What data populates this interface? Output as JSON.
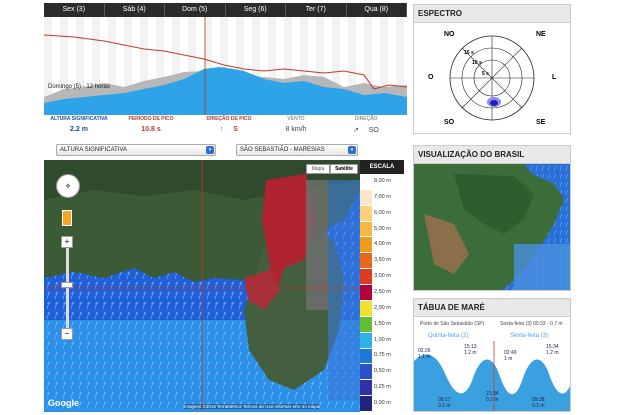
{
  "days": [
    "Sex (3)",
    "Sáb (4)",
    "Dom (5)",
    "Seg (6)",
    "Ter (7)",
    "Qua (8)"
  ],
  "chart_caption": "Domingo (5) - 12 horas",
  "metrics": {
    "altura": {
      "label": "ALTURA SIGNIFICATIVA",
      "value": "2.2 m"
    },
    "periodo": {
      "label": "PERÍODO DE PICO",
      "value": "10.8 s"
    },
    "direcao": {
      "label": "DIREÇÃO DE PICO",
      "arrow": "↑",
      "value": "S"
    },
    "vento": {
      "label": "VENTO",
      "value": "8 km/h"
    },
    "vento_dir": {
      "label": "DIREÇÃO",
      "arrow": "↗",
      "value": "SO"
    }
  },
  "spectrum": {
    "title": "ESPECTRO",
    "dirs": {
      "n": "NO",
      "ne": "NE",
      "w": "O",
      "e": "L",
      "sw": "SO",
      "se": "SE"
    },
    "rings": [
      "15 s",
      "10 s",
      "5 s"
    ]
  },
  "selects": {
    "variable": "ALTURA SIGNIFICATIVA",
    "location": "SÃO SEBASTIÃO - MARESIAS"
  },
  "map": {
    "tab_map": "Mapa",
    "tab_sat": "Satélite",
    "logo": "Google",
    "attribution": "Imagens ©2015 TerraMetrics   Termos de Uso   Informar erro no mapa"
  },
  "scale": {
    "title": "ESCALA",
    "labels": [
      "8,00 m",
      "7,00 m",
      "6,00 m",
      "5,00 m",
      "4,00 m",
      "3,50 m",
      "3,00 m",
      "2,50 m",
      "2,00 m",
      "1,50 m",
      "1,00 m",
      "0,75 m",
      "0,50 m",
      "0,25 m",
      "0,00 m"
    ]
  },
  "brasil": {
    "title": "VISUALIZAÇÃO DO BRASIL"
  },
  "tide": {
    "title": "TÁBUA DE MARÉ",
    "port": "Porto de São Sebastião (SP)",
    "now": "Sexta-feira (3) 00:33 - 0.7 m",
    "day1": "Quinta-feira (2)",
    "day2": "Sexta-feira (3)",
    "events": [
      {
        "time": "02:26",
        "height": "1.1 m"
      },
      {
        "time": "15:13",
        "height": "1.2 m"
      },
      {
        "time": "02:49",
        "height": "1 m"
      },
      {
        "time": "15:34",
        "height": "1.2 m"
      },
      {
        "time": "09:17",
        "height": "0.1 m"
      },
      {
        "time": "21:34",
        "height": "0.2 m"
      },
      {
        "time": "09:38",
        "height": "0.1 m"
      }
    ]
  },
  "colors": {
    "accent": "#1f4fa8",
    "wave": "#2fa3e8",
    "red": "#c0392b"
  }
}
